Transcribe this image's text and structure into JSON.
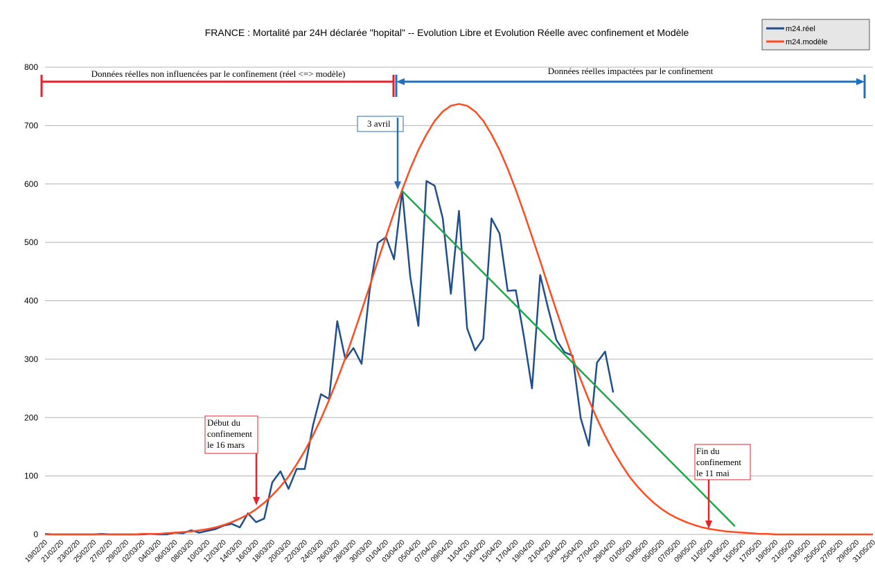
{
  "chart_data": {
    "type": "line",
    "title": "FRANCE : Mortalité par 24H déclarée \"hopital\" -- Evolution Libre et Evolution Réelle avec confinement et Modèle",
    "categories": [
      "19/02/20",
      null,
      "21/02/20",
      null,
      "23/02/20",
      null,
      "25/02/20",
      null,
      "27/02/20",
      null,
      "29/02/20",
      null,
      "02/03/20",
      null,
      "04/03/20",
      null,
      "06/03/20",
      null,
      "08/03/20",
      null,
      "10/03/20",
      null,
      "12/03/20",
      null,
      "14/03/20",
      null,
      "16/03/20",
      null,
      "18/03/20",
      null,
      "20/03/20",
      null,
      "22/03/20",
      null,
      "24/03/20",
      null,
      "26/03/20",
      null,
      "28/03/20",
      null,
      "30/03/20",
      null,
      "01/04/20",
      null,
      "03/04/20",
      null,
      "05/04/20",
      null,
      "07/04/20",
      null,
      "09/04/20",
      null,
      "11/04/20",
      null,
      "13/04/20",
      null,
      "15/04/20",
      null,
      "17/04/20",
      null,
      "19/04/20",
      null,
      "21/04/20",
      null,
      "23/04/20",
      null,
      "25/04/20",
      null,
      "27/04/20",
      null,
      "29/04/20",
      null,
      "01/05/20",
      null,
      "03/05/20",
      null,
      "05/05/20",
      null,
      "07/05/20",
      null,
      "09/05/20",
      null,
      "11/05/20",
      null,
      "13/05/20",
      null,
      "15/05/20",
      null,
      "17/05/20",
      null,
      "19/05/20",
      null,
      "21/05/20",
      null,
      "23/05/20",
      null,
      "25/05/20",
      null,
      "27/05/20",
      null,
      "29/05/20",
      null,
      "31/05/20"
    ],
    "series": [
      {
        "name": "m24.réel",
        "color": "#1f4e8c",
        "values": [
          1,
          0,
          0,
          0,
          0,
          0,
          0,
          1,
          0,
          0,
          0,
          0,
          0,
          1,
          0,
          0,
          3,
          2,
          7,
          3,
          6,
          9,
          15,
          18,
          12,
          36,
          21,
          27,
          89,
          108,
          78,
          112,
          112,
          186,
          240,
          232,
          365,
          300,
          319,
          292,
          418,
          499,
          509,
          471,
          588,
          441,
          357,
          605,
          597,
          541,
          412,
          554,
          353,
          315,
          335,
          541,
          515,
          417,
          418,
          339,
          250,
          444,
          386,
          333,
          312,
          306,
          199,
          152,
          294,
          313,
          243,
          null,
          null,
          null,
          null,
          null,
          null,
          null,
          null,
          null,
          null,
          null,
          null,
          null,
          null,
          null,
          null,
          null,
          null,
          null,
          null,
          null,
          null,
          null,
          null,
          null,
          null,
          null,
          null,
          null,
          null,
          null,
          null
        ]
      },
      {
        "name": "m24.modèle",
        "color": "#ff4b1f",
        "values": [
          0,
          0,
          0,
          0,
          0,
          0,
          0,
          0,
          0,
          0,
          0,
          0,
          1,
          1,
          1,
          2,
          3,
          4,
          5,
          7,
          9,
          12,
          16,
          21,
          27,
          34,
          43,
          54,
          67,
          82,
          99,
          120,
          143,
          169,
          198,
          230,
          265,
          302,
          342,
          383,
          425,
          468,
          510,
          551,
          590,
          626,
          658,
          685,
          708,
          724,
          734,
          737,
          734,
          724,
          708,
          685,
          658,
          626,
          590,
          551,
          510,
          468,
          425,
          383,
          342,
          302,
          265,
          230,
          198,
          169,
          143,
          120,
          99,
          82,
          67,
          54,
          43,
          34,
          27,
          21,
          16,
          12,
          9,
          7,
          5,
          4,
          3,
          2,
          1,
          1,
          0,
          0,
          0,
          0,
          0,
          0,
          0,
          0,
          0,
          0,
          0,
          0,
          0
        ]
      }
    ],
    "trend": {
      "color": "#1ea64a",
      "values": [
        null,
        null,
        null,
        null,
        null,
        null,
        null,
        null,
        null,
        null,
        null,
        null,
        null,
        null,
        null,
        null,
        null,
        null,
        null,
        null,
        null,
        null,
        null,
        null,
        null,
        null,
        null,
        null,
        null,
        null,
        null,
        null,
        null,
        null,
        null,
        null,
        null,
        null,
        null,
        null,
        null,
        null,
        null,
        null,
        588,
        574,
        560,
        546,
        532,
        518,
        504,
        490,
        476,
        462,
        448,
        434,
        420,
        406,
        392,
        378,
        364,
        350,
        336,
        322,
        308,
        294,
        280,
        266,
        252,
        238,
        224,
        210,
        196,
        182,
        168,
        154,
        140,
        126,
        112,
        98,
        84,
        70,
        56,
        42,
        28,
        14,
        null,
        null,
        null,
        null,
        null,
        null,
        null,
        null,
        null,
        null,
        null,
        null,
        null,
        null,
        null,
        null,
        null
      ]
    },
    "annotations": [
      {
        "lines": [
          "Données réelles non influencées par le confinement (réel <=> modèle)"
        ],
        "color": "#e8202a"
      },
      {
        "lines": [
          "Données réelles impactées par le confinement"
        ],
        "color": "#1f6fbf"
      },
      {
        "lines": [
          "3 avril"
        ],
        "color": "#2a6ab0"
      },
      {
        "lines": [
          "Début du",
          "confinement",
          "le 16 mars"
        ],
        "color": "#e8202a"
      },
      {
        "lines": [
          "Fin du",
          "confinement",
          "le 11 mai"
        ],
        "color": "#e8202a"
      }
    ],
    "ylim": [
      0,
      800
    ],
    "yticks": [
      0,
      100,
      200,
      300,
      400,
      500,
      600,
      700,
      800
    ],
    "grid": true,
    "legend": "top-right"
  }
}
